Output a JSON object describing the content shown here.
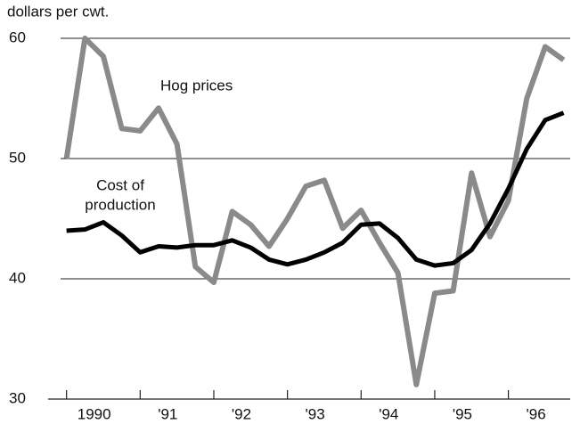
{
  "chart_data": {
    "type": "line",
    "title": "dollars per cwt.",
    "annotations": [
      "Hog prices",
      "Cost of",
      "production"
    ],
    "x": [
      1990,
      1990.25,
      1990.5,
      1990.75,
      1991,
      1991.25,
      1991.5,
      1991.75,
      1992,
      1992.25,
      1992.5,
      1992.75,
      1993,
      1993.25,
      1993.5,
      1993.75,
      1994,
      1994.25,
      1994.5,
      1994.75,
      1995,
      1995.25,
      1995.5,
      1995.75,
      1996,
      1996.25,
      1996.5,
      1996.75
    ],
    "series": [
      {
        "name": "Hog prices",
        "color": "#8a8a8a",
        "values": [
          50,
          60,
          58.5,
          52.5,
          52.3,
          54.2,
          51.2,
          41,
          39.7,
          45.6,
          44.5,
          42.7,
          45,
          47.7,
          48.2,
          44.2,
          45.7,
          43,
          40.5,
          31.2,
          38.8,
          39,
          48.8,
          43.5,
          46.5,
          55,
          59.3,
          58.2
        ]
      },
      {
        "name": "Cost of production",
        "color": "#000000",
        "values": [
          44,
          44.1,
          44.7,
          43.6,
          42.2,
          42.7,
          42.6,
          42.8,
          42.8,
          43.2,
          42.6,
          41.6,
          41.2,
          41.6,
          42.2,
          43,
          44.5,
          44.6,
          43.4,
          41.6,
          41.1,
          41.3,
          42.4,
          44.6,
          47.5,
          50.8,
          53.2,
          53.8
        ]
      }
    ],
    "xlim": [
      1989.75,
      1996.9
    ],
    "xticks": [
      {
        "value": 1990,
        "label": "1990"
      },
      {
        "value": 1991,
        "label": "'91"
      },
      {
        "value": 1992,
        "label": "'92"
      },
      {
        "value": 1993,
        "label": "'93"
      },
      {
        "value": 1994,
        "label": "'94"
      },
      {
        "value": 1995,
        "label": "'95"
      },
      {
        "value": 1996,
        "label": "'96"
      }
    ],
    "ylim": [
      30,
      60
    ],
    "yticks": [
      30,
      40,
      50,
      60
    ],
    "grid": true,
    "legend": false
  }
}
